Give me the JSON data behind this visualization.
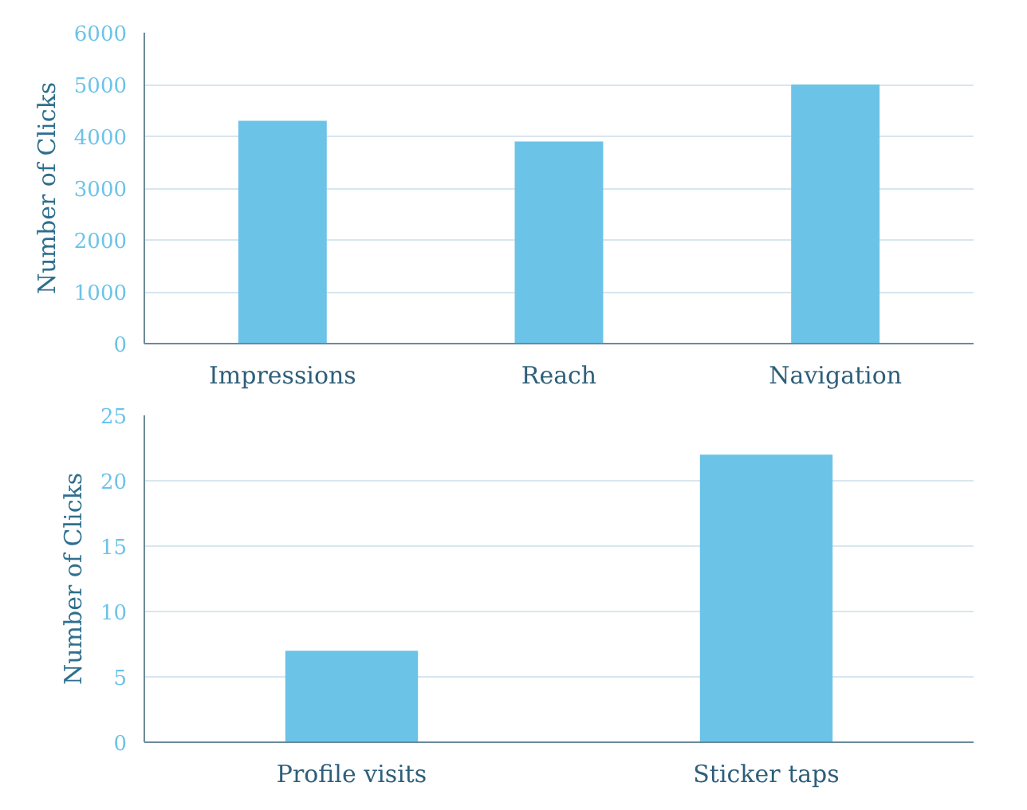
{
  "chart_data": [
    {
      "type": "bar",
      "ylabel": "Number of Clicks",
      "categories": [
        "Impressions",
        "Reach",
        "Navigation"
      ],
      "values": [
        4300,
        3900,
        5000
      ],
      "color": "#6cc3e8",
      "ylim": [
        0,
        6000
      ],
      "yticks": [
        0,
        1000,
        2000,
        3000,
        4000,
        5000,
        6000
      ],
      "grid": "y"
    },
    {
      "type": "bar",
      "ylabel": "Number of Clicks",
      "categories": [
        "Profile visits",
        "Sticker taps"
      ],
      "values": [
        7,
        22
      ],
      "color": "#6cc3e8",
      "ylim": [
        0,
        25
      ],
      "yticks": [
        0,
        5,
        10,
        15,
        20,
        25
      ],
      "grid": "y"
    }
  ]
}
